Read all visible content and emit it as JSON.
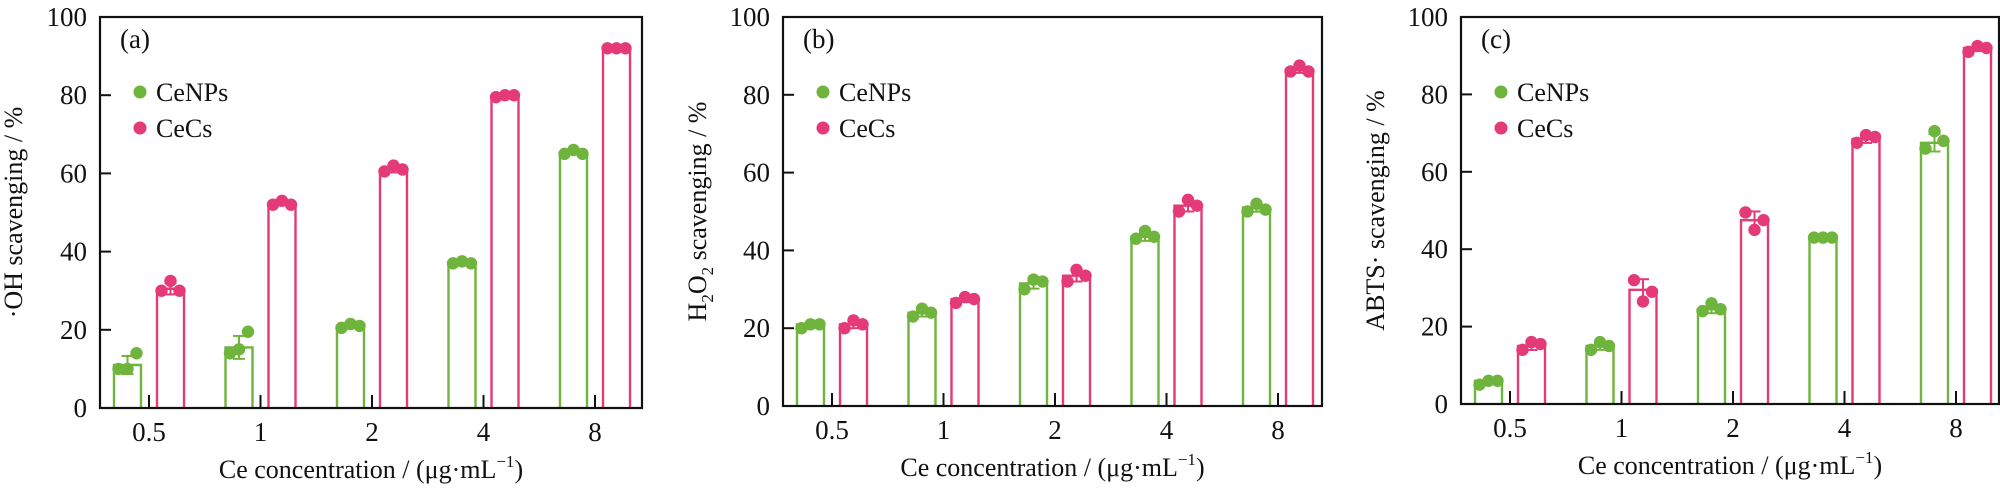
{
  "colors": {
    "CeNPs": "#6fb43c",
    "CeCs": "#e53a78",
    "axis": "#111111"
  },
  "chart_data": [
    {
      "type": "bar",
      "panel_label": "(a)",
      "ylabel": "·OH scavenging / %",
      "ylabel_parts": {
        "pre": "·OH scavenging / %",
        "sub": "",
        "post": ""
      },
      "xlabel": "Ce concentration / (μg·mL",
      "xlabel_sup": "−1",
      "xlabel_tail": ")",
      "categories": [
        "0.5",
        "1",
        "2",
        "4",
        "8"
      ],
      "ylim": [
        0,
        100
      ],
      "yticks": [
        "0",
        "20",
        "40",
        "60",
        "80",
        "100"
      ],
      "legend": [
        "CeNPs",
        "CeCs"
      ],
      "legend_position": "top-left",
      "series": [
        {
          "name": "CeNPs",
          "values": [
            11,
            15.5,
            21,
            37,
            65
          ],
          "points": [
            [
              10,
              10,
              14
            ],
            [
              14,
              15,
              19.5
            ],
            [
              20.5,
              21.5,
              21
            ],
            [
              37,
              37.5,
              37
            ],
            [
              65,
              66,
              65
            ]
          ]
        },
        {
          "name": "CeCs",
          "values": [
            30.5,
            52,
            61,
            79.5,
            92
          ],
          "points": [
            [
              30,
              32.5,
              30
            ],
            [
              52,
              53,
              52
            ],
            [
              60.5,
              62,
              61
            ],
            [
              79.5,
              80,
              80
            ],
            [
              92,
              92,
              92
            ]
          ]
        }
      ]
    },
    {
      "type": "bar",
      "panel_label": "(b)",
      "ylabel": "H2O2 scavenging / %",
      "ylabel_parts": {
        "pre": "H",
        "sub": "2",
        "post": "O",
        "sub2": "2",
        "tail": " scavenging / %"
      },
      "xlabel": "Ce concentration / (μg·mL",
      "xlabel_sup": "−1",
      "xlabel_tail": ")",
      "categories": [
        "0.5",
        "1",
        "2",
        "4",
        "8"
      ],
      "ylim": [
        0,
        100
      ],
      "yticks": [
        "0",
        "20",
        "40",
        "60",
        "80",
        "100"
      ],
      "legend": [
        "CeNPs",
        "CeCs"
      ],
      "legend_position": "top-left",
      "series": [
        {
          "name": "CeNPs",
          "values": [
            21,
            24,
            31.5,
            43.5,
            51
          ],
          "points": [
            [
              20,
              21,
              21
            ],
            [
              23,
              25,
              24
            ],
            [
              30,
              32.5,
              32
            ],
            [
              43,
              45,
              43.5
            ],
            [
              50,
              52,
              50.5
            ]
          ]
        },
        {
          "name": "CeCs",
          "values": [
            21,
            27.5,
            33.5,
            51.5,
            86.5
          ],
          "points": [
            [
              20,
              22,
              21
            ],
            [
              26.5,
              28,
              27.5
            ],
            [
              32,
              35,
              33.5
            ],
            [
              50,
              53,
              51.5
            ],
            [
              86,
              87.5,
              86
            ]
          ]
        }
      ]
    },
    {
      "type": "bar",
      "panel_label": "(c)",
      "ylabel": "ABTS· scavenging / %",
      "ylabel_parts": {
        "pre": "ABTS· scavenging / %",
        "sub": "",
        "post": ""
      },
      "xlabel": "Ce concentration / (μg·mL",
      "xlabel_sup": "−1",
      "xlabel_tail": ")",
      "categories": [
        "0.5",
        "1",
        "2",
        "4",
        "8"
      ],
      "ylim": [
        0,
        100
      ],
      "yticks": [
        "0",
        "20",
        "40",
        "60",
        "80",
        "100"
      ],
      "legend": [
        "CeNPs",
        "CeCs"
      ],
      "legend_position": "top-left",
      "series": [
        {
          "name": "CeNPs",
          "values": [
            6,
            15,
            24.5,
            43,
            67.5
          ],
          "points": [
            [
              5,
              6,
              6
            ],
            [
              14,
              16,
              15
            ],
            [
              24,
              26,
              24.5
            ],
            [
              43,
              43,
              43
            ],
            [
              66,
              70.5,
              68
            ]
          ]
        },
        {
          "name": "CeCs",
          "values": [
            15,
            29.5,
            47.5,
            68.5,
            92
          ],
          "points": [
            [
              14,
              16,
              15.5
            ],
            [
              32,
              26.5,
              29
            ],
            [
              49.5,
              45,
              47.5
            ],
            [
              67.5,
              69.5,
              69
            ],
            [
              91,
              92.5,
              92
            ]
          ]
        }
      ]
    }
  ]
}
